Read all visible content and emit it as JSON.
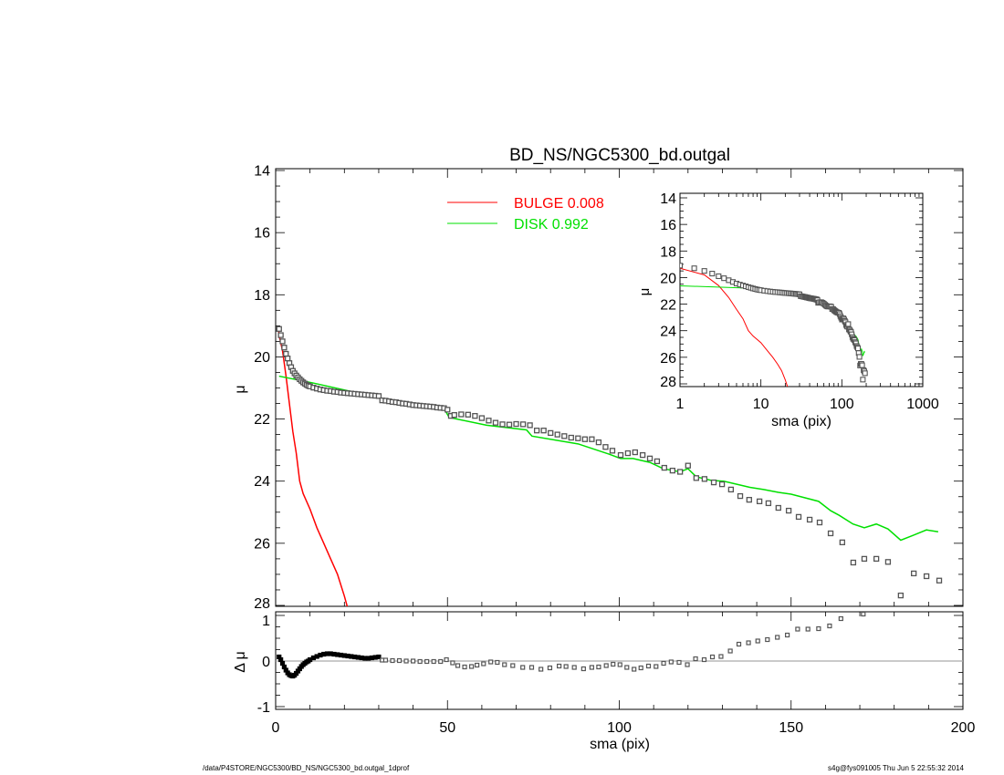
{
  "footer": {
    "left": "/data/P4STORE/NGC5300/BD_NS/NGC5300_bd.outgal_1dprof",
    "right": "s4g@fys091005  Thu Jun  5 22:55:32 2014"
  },
  "colors": {
    "data": "#555555",
    "bulge": "#ff0000",
    "disk": "#00e000",
    "zero_line": "#aaaaaa"
  },
  "chart_data": [
    {
      "type": "scatter",
      "panel": "main",
      "title": "BD_NS/NGC5300_bd.outgal",
      "xlabel": "sma (pix)",
      "ylabel": "μ",
      "xlim": [
        0,
        200
      ],
      "ylim": [
        14,
        28
      ],
      "y_inverted": true,
      "xticks": [
        "0",
        "50",
        "100",
        "150",
        "200"
      ],
      "yticks": [
        "14",
        "16",
        "18",
        "20",
        "22",
        "24",
        "26",
        "28"
      ],
      "legend": [
        {
          "label": "BULGE  0.008",
          "color": "#ff0000"
        },
        {
          "label": "DISK  0.992",
          "color": "#00e000"
        }
      ],
      "legend_placement": "top-center",
      "series": [
        {
          "name": "data",
          "kind": "points",
          "x": [
            1,
            1.5,
            2,
            2.5,
            3,
            3.5,
            4,
            4.5,
            5,
            5.5,
            6,
            6.5,
            7,
            7.5,
            8,
            8.5,
            9,
            9.5,
            10,
            11,
            12,
            13,
            14,
            15,
            16,
            17,
            18,
            19,
            20,
            21,
            22,
            23,
            24,
            25,
            26,
            27,
            28,
            29,
            30,
            31,
            32,
            33,
            34,
            35,
            36,
            37,
            38,
            39,
            40,
            41,
            42,
            43,
            44,
            45,
            46,
            47,
            48,
            49,
            50,
            51,
            52,
            54,
            56,
            58,
            60,
            62,
            64,
            66,
            68,
            70,
            72,
            74,
            76,
            78,
            80,
            82,
            84,
            86,
            88,
            90,
            92,
            94,
            96,
            98,
            100.4,
            102.5,
            104.6,
            106.8,
            108.9,
            111,
            113.1,
            115.5,
            117.7,
            120,
            122.4,
            124.8,
            127.5,
            129.9,
            132.5,
            135.2,
            137.8,
            140.8,
            143.4,
            146.3,
            149.3,
            152.2,
            155.4,
            158.3,
            161.5,
            164.9,
            168.1,
            171.3,
            174.8,
            178.2,
            181.9,
            185.7,
            189.4,
            193.1
          ],
          "y": [
            19.1,
            19.3,
            19.5,
            19.7,
            19.9,
            20.05,
            20.2,
            20.33,
            20.45,
            20.53,
            20.6,
            20.66,
            20.72,
            20.77,
            20.82,
            20.86,
            20.9,
            20.93,
            20.95,
            20.99,
            21.02,
            21.05,
            21.07,
            21.09,
            21.1,
            21.12,
            21.13,
            21.15,
            21.16,
            21.17,
            21.18,
            21.19,
            21.2,
            21.21,
            21.22,
            21.23,
            21.24,
            21.25,
            21.26,
            21.4,
            21.41,
            21.43,
            21.45,
            21.46,
            21.48,
            21.5,
            21.51,
            21.53,
            21.55,
            21.56,
            21.57,
            21.58,
            21.59,
            21.6,
            21.61,
            21.63,
            21.64,
            21.65,
            21.7,
            21.9,
            21.87,
            21.85,
            21.86,
            21.9,
            21.97,
            22.05,
            22.12,
            22.17,
            22.18,
            22.16,
            22.17,
            22.2,
            22.37,
            22.37,
            22.45,
            22.5,
            22.55,
            22.6,
            22.62,
            22.65,
            22.65,
            22.75,
            22.9,
            23.02,
            23.16,
            23.1,
            23.07,
            23.16,
            23.27,
            23.36,
            23.57,
            23.66,
            23.7,
            23.5,
            23.9,
            23.93,
            24.04,
            24.1,
            24.27,
            24.48,
            24.6,
            24.65,
            24.71,
            24.86,
            24.95,
            25.15,
            25.24,
            25.33,
            25.68,
            25.97,
            26.62,
            26.5,
            26.5,
            26.6,
            27.68,
            26.97,
            27.06,
            27.2
          ]
        },
        {
          "name": "BULGE",
          "kind": "line",
          "color": "#ff0000",
          "x": [
            0.8,
            1,
            2,
            3,
            4,
            5,
            6,
            7,
            8,
            10,
            12,
            14,
            16,
            18,
            20,
            21,
            22
          ],
          "y": [
            19.1,
            19.3,
            19.8,
            20.6,
            21.5,
            22.4,
            23.1,
            24.0,
            24.4,
            24.9,
            25.5,
            26.0,
            26.5,
            27.0,
            27.7,
            28.1,
            28.5
          ]
        },
        {
          "name": "DISK",
          "kind": "line",
          "color": "#00e000",
          "x": [
            1,
            10.9,
            22.6,
            30.5,
            30.6,
            49,
            50.5,
            61.4,
            73,
            74.6,
            88,
            97,
            100.4,
            104,
            109,
            112.8,
            117.7,
            120,
            122.4,
            126.9,
            130.4,
            138,
            142,
            146.3,
            150,
            158,
            161.5,
            164,
            168,
            171.3,
            174.8,
            178.2,
            181.9,
            185.4,
            189.4,
            192.8
          ],
          "y": [
            20.62,
            20.84,
            21.13,
            21.25,
            21.4,
            21.66,
            21.95,
            22.2,
            22.35,
            22.55,
            22.8,
            23.13,
            23.27,
            23.27,
            23.4,
            23.6,
            23.7,
            23.6,
            23.86,
            23.98,
            24.0,
            24.2,
            24.27,
            24.36,
            24.42,
            24.65,
            24.95,
            25.1,
            25.38,
            25.5,
            25.38,
            25.54,
            25.9,
            25.75,
            25.57,
            25.63
          ]
        }
      ]
    },
    {
      "type": "scatter",
      "panel": "residual",
      "xlabel": "sma (pix)",
      "ylabel": "Δ μ",
      "xlim": [
        0,
        200
      ],
      "ylim": [
        -1,
        1
      ],
      "yticks": [
        "1",
        "0",
        "-1"
      ],
      "series": [
        {
          "name": "residual",
          "kind": "points",
          "x": [
            1,
            1.5,
            2,
            2.5,
            3,
            3.5,
            4,
            4.5,
            5,
            5.5,
            6,
            6.5,
            7,
            7.5,
            8,
            8.5,
            9,
            9.5,
            10,
            11,
            12,
            13,
            14,
            15,
            16,
            17,
            18,
            19,
            20,
            21,
            22,
            23,
            24,
            25,
            26,
            27,
            28,
            29,
            30,
            31,
            32,
            34,
            36,
            38,
            40,
            42,
            44,
            46,
            48,
            49.7,
            51.5,
            53,
            55,
            57,
            58.6,
            60.5,
            62.6,
            64.5,
            66.6,
            69,
            71.9,
            74.5,
            77.2,
            79.8,
            82.5,
            84.5,
            86.9,
            89.6,
            92,
            94,
            96.2,
            98.2,
            100.2,
            102.2,
            104.3,
            106.3,
            108.5,
            110.7,
            112.9,
            115.1,
            117.4,
            119.8,
            122.2,
            124.7,
            127.1,
            129.6,
            132.3,
            134.8,
            137.6,
            140.3,
            143.1,
            146,
            148.9,
            151.9,
            154.9,
            158,
            161.2,
            164.5,
            171
          ],
          "y": [
            0.09,
            0.03,
            -0.05,
            -0.13,
            -0.2,
            -0.26,
            -0.3,
            -0.32,
            -0.33,
            -0.31,
            -0.27,
            -0.22,
            -0.17,
            -0.12,
            -0.08,
            -0.05,
            -0.02,
            0.0,
            0.03,
            0.07,
            0.1,
            0.13,
            0.15,
            0.16,
            0.16,
            0.15,
            0.14,
            0.13,
            0.12,
            0.11,
            0.1,
            0.09,
            0.08,
            0.07,
            0.06,
            0.06,
            0.07,
            0.08,
            0.09,
            0.02,
            0.02,
            0.01,
            0.01,
            0.0,
            0.0,
            -0.01,
            -0.01,
            -0.01,
            -0.01,
            0.03,
            -0.04,
            -0.1,
            -0.13,
            -0.12,
            -0.09,
            -0.06,
            -0.02,
            -0.03,
            -0.08,
            -0.1,
            -0.14,
            -0.14,
            -0.18,
            -0.15,
            -0.11,
            -0.12,
            -0.14,
            -0.17,
            -0.14,
            -0.13,
            -0.1,
            -0.07,
            -0.08,
            -0.14,
            -0.18,
            -0.15,
            -0.11,
            -0.12,
            -0.05,
            -0.02,
            -0.03,
            -0.08,
            0.05,
            0.03,
            0.09,
            0.1,
            0.22,
            0.37,
            0.4,
            0.44,
            0.47,
            0.52,
            0.57,
            0.7,
            0.7,
            0.71,
            0.77,
            0.93,
            1.03
          ]
        }
      ]
    },
    {
      "type": "scatter",
      "panel": "inset",
      "xlabel": "sma (pix)",
      "ylabel": "μ",
      "xscale": "log",
      "xlim": [
        1,
        1000
      ],
      "ylim": [
        14,
        28
      ],
      "y_inverted": true,
      "xticks": [
        "1",
        "10",
        "100",
        "1000"
      ],
      "yticks": [
        "14",
        "16",
        "18",
        "20",
        "22",
        "24",
        "26",
        "28"
      ],
      "uses_series_from": "main"
    }
  ]
}
